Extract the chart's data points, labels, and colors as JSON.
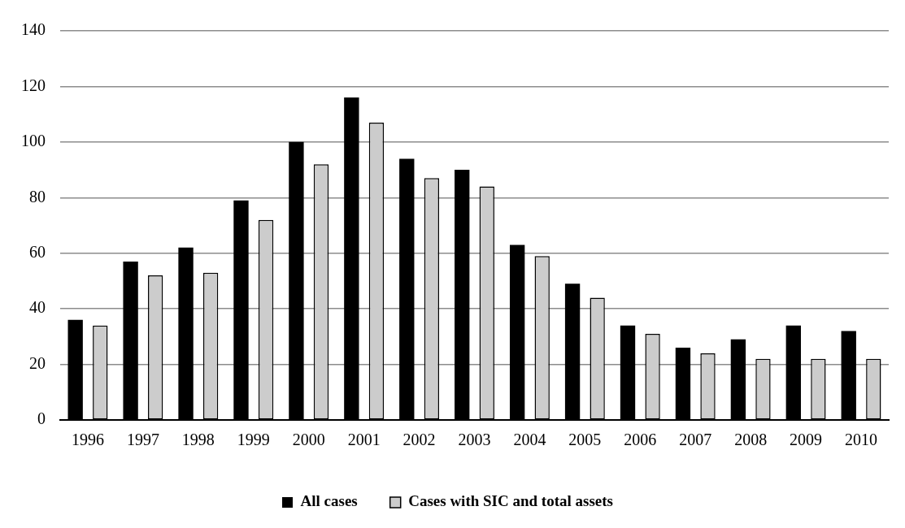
{
  "chart_data": {
    "type": "bar",
    "categories": [
      "1996",
      "1997",
      "1998",
      "1999",
      "2000",
      "2001",
      "2002",
      "2003",
      "2004",
      "2005",
      "2006",
      "2007",
      "2008",
      "2009",
      "2010"
    ],
    "series": [
      {
        "name": "All cases",
        "color": "#000000",
        "values": [
          36,
          57,
          62,
          79,
          100,
          116,
          94,
          90,
          63,
          49,
          34,
          26,
          29,
          34,
          32
        ]
      },
      {
        "name": "Cases with SIC and total assets",
        "color": "#cccccc",
        "values": [
          34,
          52,
          53,
          72,
          92,
          107,
          87,
          84,
          59,
          44,
          31,
          24,
          22,
          22,
          22
        ]
      }
    ],
    "ylim": [
      0,
      140
    ],
    "yticks": [
      0,
      20,
      40,
      60,
      80,
      100,
      120,
      140
    ],
    "grid": "y",
    "legend": "bottom"
  }
}
